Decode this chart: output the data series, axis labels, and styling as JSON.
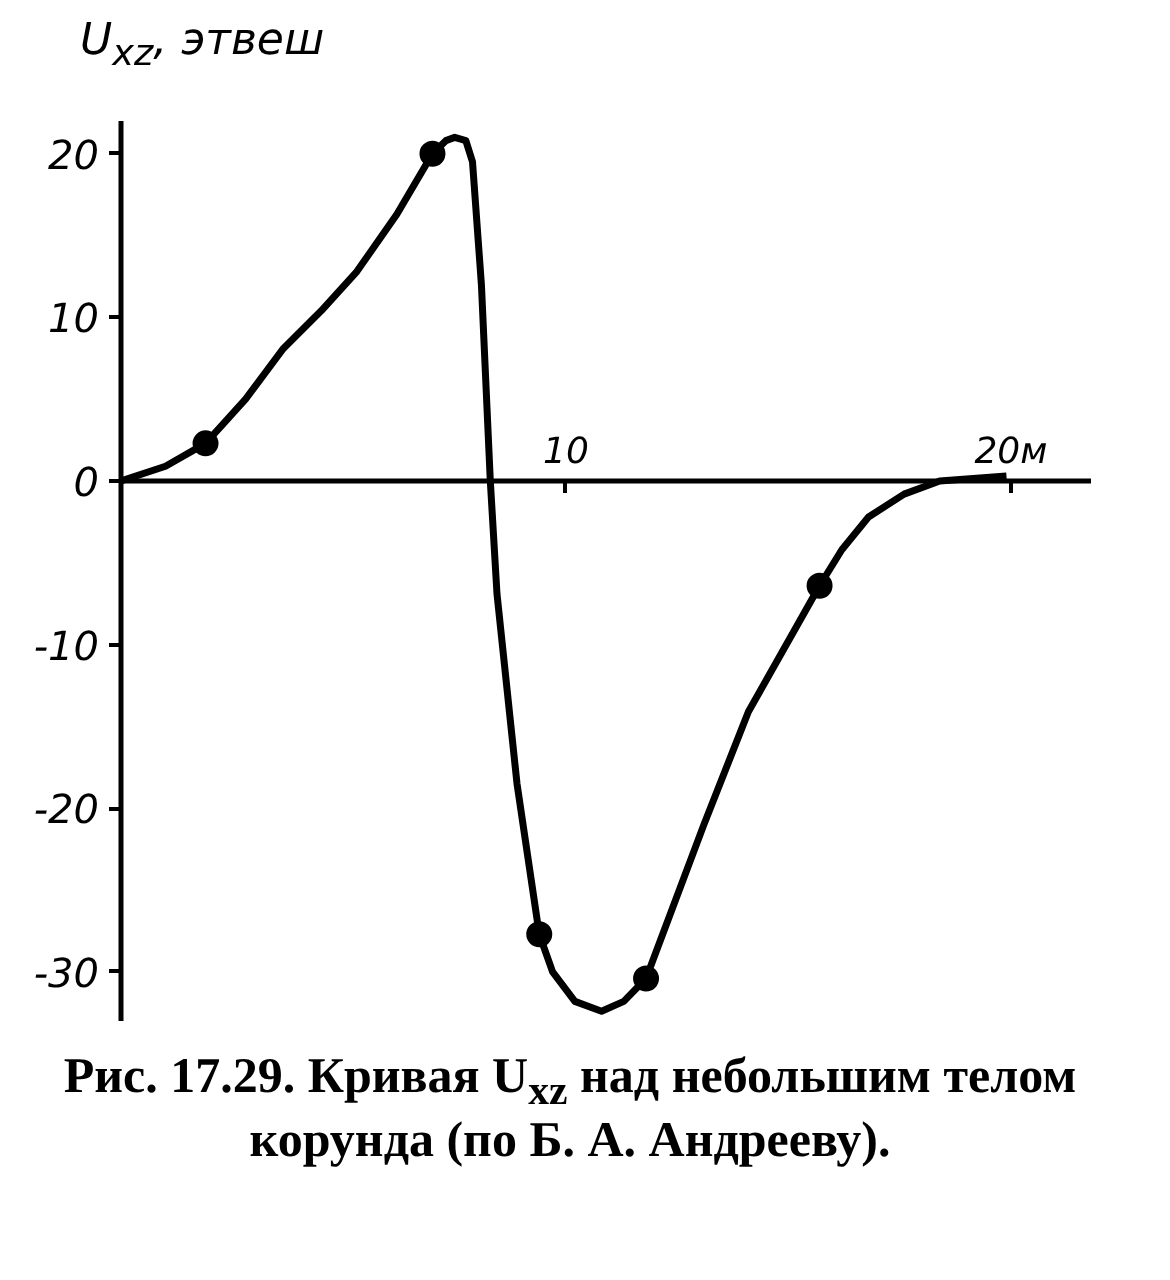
{
  "chart_data": {
    "type": "line",
    "ylabel": "U$_{xz}$, этвеш",
    "annotations": [
      "Рис. 17.29. Кривая U$_{xz}$ над небольшим телом корунда (по Б. А. Андрееву)."
    ],
    "xlim": [
      0,
      21.8
    ],
    "ylim": [
      -33,
      22
    ],
    "xticks": [
      10,
      {
        "value": 20,
        "label": "20м"
      }
    ],
    "yticks": [
      -30,
      -20,
      -10,
      0,
      10,
      20
    ],
    "grid": false,
    "series": [
      {
        "color": "#000000",
        "marker": "none",
        "x": [
          0,
          1,
          1.9,
          2.8,
          3.65,
          4.5,
          5.3,
          6.2,
          7.0,
          7.3,
          7.5,
          7.75,
          7.9,
          8.1,
          8.3,
          8.45,
          8.9,
          9.4,
          9.7,
          10.2,
          10.8,
          11.3,
          11.8,
          13.1,
          14.1,
          15.7,
          16.2,
          16.8,
          17.6,
          18.4,
          19.9
        ],
        "values": [
          0,
          0.9,
          2.3,
          5.0,
          8.1,
          10.4,
          12.8,
          16.3,
          20,
          20.8,
          21,
          20.8,
          19.5,
          12,
          0,
          -6.9,
          -18.5,
          -27.7,
          -30.0,
          -31.8,
          -32.4,
          -31.8,
          -30.4,
          -21,
          -14.1,
          -6.4,
          -4.2,
          -2.2,
          -0.8,
          0,
          0.3
        ]
      },
      {
        "type": "scatter",
        "color": "#000000",
        "marker": "circle",
        "x": [
          1.9,
          7.0,
          9.4,
          11.8,
          15.7
        ],
        "values": [
          2.3,
          20,
          -27.7,
          -30.4,
          -6.4
        ]
      }
    ]
  }
}
